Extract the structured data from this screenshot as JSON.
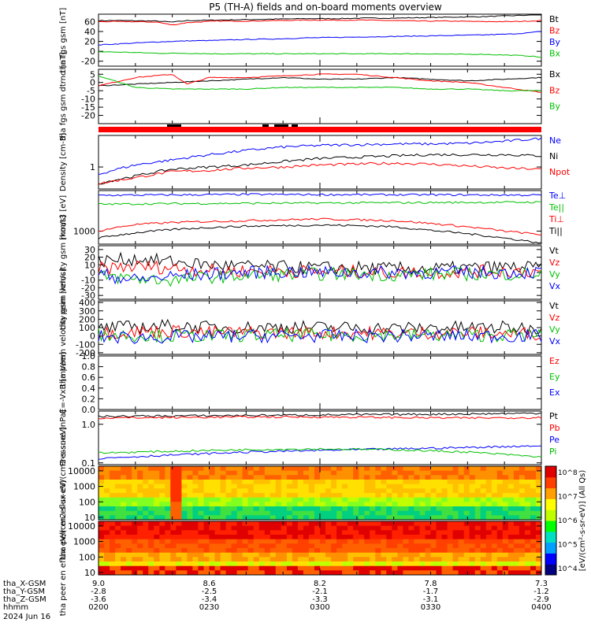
{
  "title": "P5 (TH-A) fields and on-board moments overview",
  "time_axis": {
    "ticks": [
      "0200",
      "0230",
      "0300",
      "0330",
      "0400"
    ],
    "rows": [
      {
        "label": "tha_X-GSM",
        "values": [
          "9.0",
          "8.6",
          "8.2",
          "7.8",
          "7.3"
        ]
      },
      {
        "label": "tha_Y-GSM",
        "values": [
          "-2.8",
          "-2.5",
          "-2.1",
          "-1.7",
          "-1.2"
        ]
      },
      {
        "label": "tha_Z-GSM",
        "values": [
          "-3.6",
          "-3.4",
          "-3.3",
          "-3.1",
          "-2.9"
        ]
      },
      {
        "label": "hhmm",
        "values": [
          "0200",
          "0230",
          "0300",
          "0330",
          "0400"
        ]
      }
    ],
    "date": "2024 Jun 16"
  },
  "colorbar": {
    "ticks": [
      "10^4",
      "10^5",
      "10^6",
      "10^7",
      "10^8"
    ],
    "label": "[eV/(cm²-s-sr-eV)] (All Qs)",
    "colors": [
      "#000080",
      "#0000ff",
      "#00a0ff",
      "#00e0c0",
      "#00ff00",
      "#c0ff00",
      "#ffff00",
      "#ffa000",
      "#ff4000",
      "#e00000"
    ]
  },
  "chart_data": [
    {
      "type": "line",
      "ylabel": "tha fgs gsm [nT]",
      "ylim": [
        -30,
        75
      ],
      "yticks": [
        -20,
        0,
        20,
        40,
        60
      ],
      "series": [
        {
          "name": "Bt",
          "color": "#000000",
          "x": [
            0,
            4,
            8,
            10,
            12,
            16,
            20,
            24,
            28,
            32,
            36,
            40,
            44,
            48,
            52,
            56,
            58,
            60
          ],
          "values": [
            62,
            62,
            61,
            59,
            62,
            63,
            64,
            65,
            66,
            66,
            67,
            67,
            68,
            69,
            70,
            72,
            73,
            74
          ]
        },
        {
          "name": "Bz",
          "color": "#ff0000",
          "x": [
            0,
            4,
            8,
            10,
            12,
            16,
            20,
            24,
            28,
            32,
            36,
            40,
            44,
            48,
            52,
            56,
            58,
            60
          ],
          "values": [
            60,
            60,
            59,
            53,
            58,
            61,
            61,
            62,
            63,
            63,
            63,
            62,
            61,
            61,
            60,
            60,
            61,
            62
          ]
        },
        {
          "name": "By",
          "color": "#0000ff",
          "x": [
            0,
            4,
            8,
            12,
            16,
            20,
            24,
            28,
            32,
            36,
            40,
            44,
            48,
            52,
            56,
            58,
            60
          ],
          "values": [
            13,
            16,
            19,
            21,
            22,
            24,
            25,
            27,
            28,
            29,
            30,
            31,
            32,
            33,
            35,
            37,
            40
          ]
        },
        {
          "name": "Bx",
          "color": "#00c000",
          "x": [
            0,
            4,
            8,
            12,
            16,
            20,
            24,
            28,
            32,
            36,
            40,
            44,
            48,
            52,
            56,
            58,
            60
          ],
          "values": [
            -1,
            -2,
            -4,
            -4,
            -5,
            -5,
            -5,
            -5,
            -5,
            -5,
            -5,
            -5,
            -6,
            -6,
            -8,
            -9,
            -12
          ]
        }
      ]
    },
    {
      "type": "line",
      "ylabel": "tha fgs gsm dtrnd [nT]",
      "ylim": [
        -25,
        8
      ],
      "yticks": [
        -20,
        -15,
        -10,
        -5,
        0,
        5
      ],
      "series": [
        {
          "name": "Bx",
          "color": "#000000",
          "x": [
            0,
            5,
            10,
            15,
            20,
            25,
            30,
            35,
            40,
            45,
            50,
            55,
            60
          ],
          "values": [
            -2,
            -1,
            0,
            1,
            2,
            3,
            2,
            2,
            3,
            2,
            1,
            2,
            3
          ]
        },
        {
          "name": "Bz",
          "color": "#ff0000",
          "x": [
            0,
            5,
            10,
            12,
            15,
            20,
            25,
            30,
            35,
            40,
            45,
            50,
            55,
            60
          ],
          "values": [
            -2,
            3,
            5,
            -1,
            3,
            3,
            4,
            5,
            5,
            3,
            1,
            0,
            -3,
            -6
          ]
        },
        {
          "name": "By",
          "color": "#00c000",
          "x": [
            0,
            5,
            10,
            15,
            20,
            25,
            30,
            35,
            40,
            45,
            50,
            55,
            60
          ],
          "values": [
            4,
            -3,
            -4,
            -4,
            -4,
            -3,
            -3,
            -3,
            -3,
            -4,
            -4,
            -5,
            -5
          ]
        }
      ]
    },
    {
      "type": "line",
      "ylabel": "Density [cm-3]",
      "scale": "log",
      "ylim": [
        0.35,
        4.5
      ],
      "yticks": [
        1
      ],
      "series": [
        {
          "name": "Ne",
          "color": "#0000ff",
          "x": [
            0,
            5,
            10,
            15,
            20,
            25,
            30,
            35,
            40,
            45,
            50,
            55,
            60
          ],
          "values": [
            0.7,
            1.1,
            1.4,
            1.8,
            2.2,
            2.6,
            2.8,
            2.9,
            3.0,
            3.0,
            3.1,
            3.4,
            3.9
          ]
        },
        {
          "name": "Ni",
          "color": "#000000",
          "x": [
            0,
            5,
            10,
            15,
            20,
            25,
            30,
            35,
            40,
            45,
            50,
            55,
            60
          ],
          "values": [
            0.45,
            0.65,
            0.9,
            1.0,
            1.1,
            1.3,
            1.5,
            1.6,
            1.7,
            1.8,
            1.8,
            1.8,
            1.7
          ]
        },
        {
          "name": "Npot",
          "color": "#ff0000",
          "x": [
            0,
            5,
            10,
            15,
            20,
            25,
            30,
            35,
            40,
            45,
            50,
            55,
            60
          ],
          "values": [
            0.45,
            0.6,
            0.8,
            0.85,
            0.95,
            1.0,
            1.1,
            1.15,
            1.2,
            1.15,
            1.05,
            0.95,
            0.9
          ]
        }
      ]
    },
    {
      "type": "line",
      "ylabel": "moat3 [eV]",
      "scale": "log",
      "ylim": [
        450,
        12000
      ],
      "yticks": [
        1000
      ],
      "series": [
        {
          "name": "Te⊥",
          "color": "#0000ff",
          "x": [
            0,
            10,
            20,
            30,
            40,
            50,
            60
          ],
          "values": [
            9000,
            9200,
            9500,
            9400,
            9300,
            9200,
            9100
          ]
        },
        {
          "name": "Te||",
          "color": "#00c000",
          "x": [
            0,
            10,
            20,
            30,
            40,
            50,
            60
          ],
          "values": [
            5200,
            5400,
            5500,
            5600,
            5700,
            5800,
            5900
          ]
        },
        {
          "name": "Ti⊥",
          "color": "#ff0000",
          "x": [
            0,
            5,
            10,
            15,
            20,
            25,
            30,
            35,
            40,
            45,
            50,
            55,
            60
          ],
          "values": [
            1000,
            1500,
            1700,
            1800,
            1900,
            2000,
            2100,
            2000,
            1900,
            1600,
            1300,
            1000,
            800
          ]
        },
        {
          "name": "Ti||",
          "color": "#000000",
          "x": [
            0,
            5,
            10,
            15,
            20,
            25,
            30,
            35,
            40,
            45,
            50,
            55,
            60
          ],
          "values": [
            650,
            900,
            1100,
            1250,
            1350,
            1400,
            1450,
            1400,
            1300,
            1050,
            850,
            650,
            480
          ]
        }
      ]
    },
    {
      "type": "line",
      "ylabel": "tha peim velocity gsm [km/s]",
      "ylim": [
        -35,
        35
      ],
      "yticks": [
        -30,
        -20,
        -10,
        0,
        10,
        20,
        30
      ],
      "series": [
        {
          "name": "Vt",
          "color": "#000000",
          "values": [
            15,
            18,
            14,
            10,
            8,
            7,
            6,
            6,
            5,
            5,
            6,
            7,
            6
          ]
        },
        {
          "name": "Vz",
          "color": "#ff0000",
          "values": [
            5,
            8,
            6,
            3,
            2,
            2,
            1,
            1,
            0,
            0,
            1,
            2,
            1
          ]
        },
        {
          "name": "Vy",
          "color": "#00c000",
          "values": [
            -5,
            -8,
            -10,
            -6,
            -4,
            -3,
            -2,
            -2,
            -3,
            -2,
            -2,
            -2,
            -2
          ]
        },
        {
          "name": "Vx",
          "color": "#0000ff",
          "values": [
            -2,
            -10,
            -5,
            -2,
            0,
            1,
            0,
            0,
            0,
            0,
            0,
            0,
            0
          ]
        }
      ]
    },
    {
      "type": "line",
      "ylabel": "tha peem velocity gsm [km/s]",
      "ylim": [
        -220,
        420
      ],
      "yticks": [
        -200,
        -100,
        0,
        100,
        200,
        300,
        400
      ],
      "series": [
        {
          "name": "Vt",
          "color": "#000000",
          "values": [
            90,
            110,
            120,
            100,
            100,
            110,
            100,
            100,
            90,
            100,
            100,
            100,
            90
          ]
        },
        {
          "name": "Vz",
          "color": "#ff0000",
          "values": [
            40,
            50,
            60,
            40,
            40,
            40,
            40,
            40,
            30,
            40,
            40,
            30,
            30
          ]
        },
        {
          "name": "Vy",
          "color": "#00c000",
          "values": [
            20,
            10,
            0,
            0,
            10,
            10,
            10,
            10,
            10,
            10,
            10,
            10,
            10
          ]
        },
        {
          "name": "Vx",
          "color": "#0000ff",
          "values": [
            -10,
            -20,
            -10,
            -10,
            0,
            0,
            0,
            0,
            0,
            0,
            0,
            0,
            0
          ]
        }
      ]
    },
    {
      "type": "line",
      "ylabel": "E=-VxB [mV/m]",
      "ylim": [
        0,
        1
      ],
      "yticks": [
        0.0,
        0.2,
        0.4,
        0.6,
        0.8,
        1.0
      ],
      "ytick_labels": [
        "0.0",
        "0.2",
        "0.4",
        "0.6",
        "0.8",
        "1.0"
      ],
      "series": [
        {
          "name": "Ez",
          "color": "#ff0000",
          "values": []
        },
        {
          "name": "Ey",
          "color": "#00c000",
          "values": []
        },
        {
          "name": "Ex",
          "color": "#0000ff",
          "values": []
        }
      ]
    },
    {
      "type": "line",
      "ylabel": "Pressure [nPa]",
      "scale": "log",
      "ylim": [
        0.09,
        2.2
      ],
      "yticks": [
        0.1,
        1.0
      ],
      "ytick_labels": [
        "0.1",
        "1.0"
      ],
      "series": [
        {
          "name": "Pt",
          "color": "#000000",
          "x": [
            0,
            10,
            20,
            30,
            40,
            50,
            60
          ],
          "values": [
            1.6,
            1.65,
            1.7,
            1.75,
            1.8,
            1.85,
            1.95
          ]
        },
        {
          "name": "Pb",
          "color": "#ff0000",
          "x": [
            0,
            10,
            20,
            30,
            40,
            50,
            60
          ],
          "values": [
            1.45,
            1.5,
            1.55,
            1.55,
            1.5,
            1.45,
            1.5
          ]
        },
        {
          "name": "Pe",
          "color": "#0000ff",
          "x": [
            0,
            10,
            20,
            30,
            40,
            50,
            60
          ],
          "values": [
            0.13,
            0.16,
            0.19,
            0.21,
            0.23,
            0.25,
            0.28
          ]
        },
        {
          "name": "Pi",
          "color": "#00c000",
          "x": [
            0,
            10,
            20,
            30,
            40,
            50,
            60
          ],
          "values": [
            0.18,
            0.2,
            0.22,
            0.23,
            0.22,
            0.19,
            0.14
          ]
        }
      ]
    },
    {
      "type": "heatmap",
      "ylabel": "tha peir en eflux eV/(cm2-s-sr-eV)",
      "scale": "log",
      "ylim": [
        7,
        20000
      ],
      "yticks": [
        10,
        100,
        1000,
        10000
      ],
      "ytick_labels": [
        "10",
        "100",
        "1000",
        "10000"
      ]
    },
    {
      "type": "heatmap",
      "ylabel": "tha peer en eflux eV/(cm2-s-sr-eV)",
      "scale": "log",
      "ylim": [
        7,
        20000
      ],
      "yticks": [
        10,
        100,
        1000,
        10000
      ],
      "ytick_labels": [
        "10",
        "100",
        "1000",
        "10000"
      ]
    }
  ]
}
